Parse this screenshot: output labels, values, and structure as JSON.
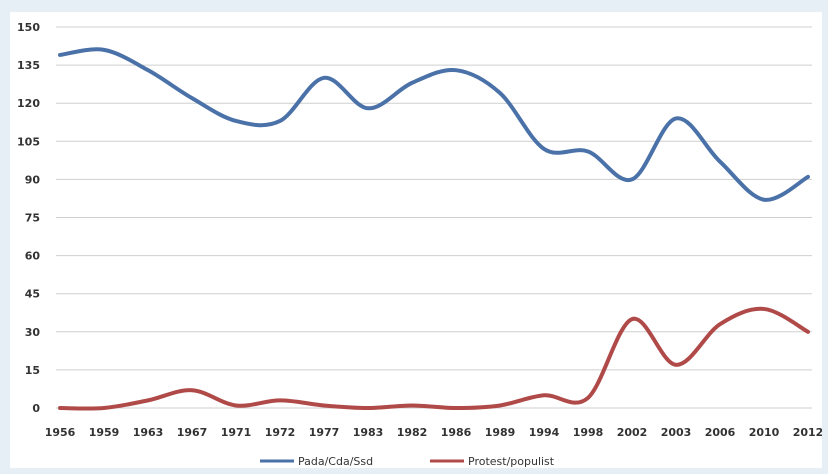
{
  "chart_data": {
    "type": "line",
    "categories": [
      "1956",
      "1959",
      "1963",
      "1967",
      "1971",
      "1972",
      "1977",
      "1983",
      "1982",
      "1986",
      "1989",
      "1994",
      "1998",
      "2002",
      "2003",
      "2006",
      "2010",
      "2012"
    ],
    "series": [
      {
        "name": "Pada/Cda/Ssd",
        "color": "#4a72a8",
        "values": [
          139,
          141,
          133,
          122,
          113,
          113,
          130,
          118,
          128,
          133,
          124,
          102,
          101,
          90,
          114,
          97,
          82,
          91
        ]
      },
      {
        "name": "Protest/populist",
        "color": "#b04a48",
        "values": [
          0,
          0,
          3,
          7,
          1,
          3,
          1,
          0,
          1,
          0,
          1,
          5,
          4,
          35,
          17,
          33,
          39,
          30
        ]
      }
    ],
    "ylim": [
      0,
      150
    ],
    "yticks": [
      0,
      15,
      30,
      45,
      60,
      75,
      90,
      105,
      120,
      135,
      150
    ],
    "grid": true,
    "legend": "bottom"
  }
}
